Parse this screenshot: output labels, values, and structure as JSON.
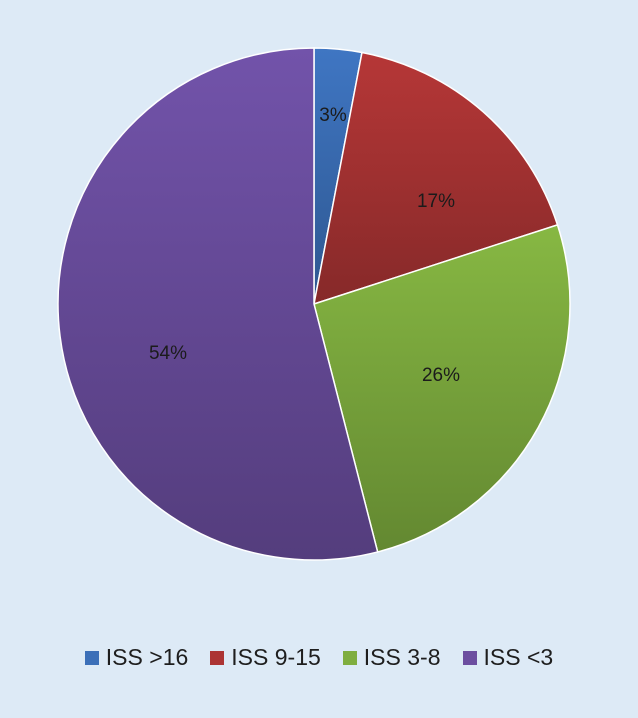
{
  "chart_data": {
    "type": "pie",
    "title": "",
    "categories": [
      "ISS >16",
      "ISS 9-15",
      "ISS 3-8",
      "ISS <3"
    ],
    "values": [
      3,
      17,
      26,
      54
    ],
    "data_labels": [
      "3%",
      "17%",
      "26%",
      "54%"
    ],
    "colors": [
      "#3b6fb8",
      "#ac3434",
      "#7fae3f",
      "#6c4ea0"
    ],
    "legend": [
      "ISS >16",
      "ISS 9-15",
      "ISS 3-8",
      "ISS <3"
    ],
    "legend_position": "bottom",
    "start": "12 o'clock",
    "direction": "clockwise"
  }
}
